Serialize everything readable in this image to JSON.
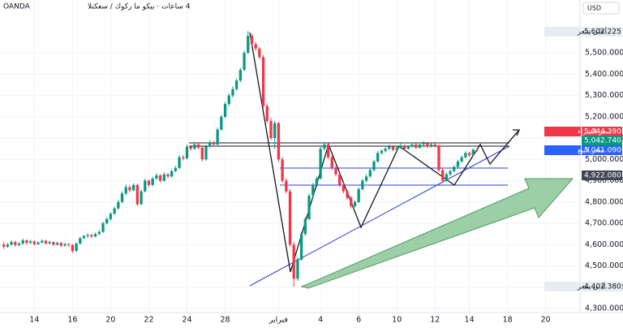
{
  "chart_data": {
    "type": "candlestick",
    "broker": "OANDA",
    "title": "4 ساعات · بيكو ما ركوك / سعكنلا",
    "currency": "USD",
    "up_color": "#089981",
    "down_color": "#f23645",
    "grid": true,
    "xlim": [
      -1,
      151
    ],
    "xticks": [
      {
        "value": 8,
        "label": "14"
      },
      {
        "value": 18,
        "label": "16"
      },
      {
        "value": 28,
        "label": "20"
      },
      {
        "value": 38,
        "label": "22"
      },
      {
        "value": 48,
        "label": "24"
      },
      {
        "value": 58,
        "label": "28"
      },
      {
        "value": 72,
        "label": "فبراير"
      },
      {
        "value": 83,
        "label": "4"
      },
      {
        "value": 93,
        "label": "6"
      },
      {
        "value": 103,
        "label": "10"
      },
      {
        "value": 113,
        "label": "12"
      },
      {
        "value": 122,
        "label": "14"
      },
      {
        "value": 132,
        "label": "18"
      },
      {
        "value": 142,
        "label": "20"
      }
    ],
    "ylim": [
      4281,
      5748
    ],
    "yticks": [
      {
        "value": 4300,
        "label": "4,300.000"
      },
      {
        "value": 4400,
        "label": "4,400.000"
      },
      {
        "value": 4500,
        "label": "4,500.000"
      },
      {
        "value": 4600,
        "label": "4,600.000"
      },
      {
        "value": 4700,
        "label": "4,700.000"
      },
      {
        "value": 4800,
        "label": "4,800.000"
      },
      {
        "value": 4900,
        "label": "4,900.000"
      },
      {
        "value": 5000,
        "label": "5,000.000"
      },
      {
        "value": 5100,
        "label": "5,100.000"
      },
      {
        "value": 5200,
        "label": "5,200.000"
      },
      {
        "value": 5300,
        "label": "5,300.000"
      },
      {
        "value": 5400,
        "label": "5,400.000"
      },
      {
        "value": 5500,
        "label": "5,500.000"
      }
    ],
    "price_labels": [
      {
        "name": "أعلى سعر",
        "value": 5602.225,
        "label": "5,602.225",
        "color": "#e8ebf2"
      },
      {
        "name": "سعر الشراء",
        "value": 5044.39,
        "label": "5,044.390",
        "color": "#f23645"
      },
      {
        "value": 5042.74,
        "label": "5,042.740",
        "color": "#089981"
      },
      {
        "name": "سعر البيع",
        "value": 5041.09,
        "label": "5,041.090",
        "color": "#2962ff"
      },
      {
        "value": 4922.08,
        "label": "4,922.080",
        "color": "#434651"
      },
      {
        "name": "أدنى سعر",
        "value": 4402.38,
        "label": "4,402.380",
        "color": "#e8ebf2"
      }
    ],
    "ohlc": [
      [
        4600,
        4612,
        4580,
        4590
      ],
      [
        4590,
        4608,
        4585,
        4600
      ],
      [
        4600,
        4620,
        4595,
        4612
      ],
      [
        4612,
        4618,
        4590,
        4598
      ],
      [
        4598,
        4612,
        4592,
        4605
      ],
      [
        4605,
        4628,
        4600,
        4620
      ],
      [
        4620,
        4625,
        4600,
        4608
      ],
      [
        4608,
        4622,
        4603,
        4615
      ],
      [
        4615,
        4620,
        4595,
        4602
      ],
      [
        4602,
        4616,
        4598,
        4610
      ],
      [
        4610,
        4625,
        4605,
        4618
      ],
      [
        4618,
        4622,
        4600,
        4606
      ],
      [
        4606,
        4618,
        4600,
        4612
      ],
      [
        4612,
        4615,
        4594,
        4600
      ],
      [
        4600,
        4614,
        4596,
        4608
      ],
      [
        4608,
        4612,
        4588,
        4595
      ],
      [
        4595,
        4608,
        4590,
        4602
      ],
      [
        4602,
        4606,
        4590,
        4598
      ],
      [
        4598,
        4602,
        4560,
        4570
      ],
      [
        4570,
        4610,
        4565,
        4605
      ],
      [
        4605,
        4636,
        4600,
        4630
      ],
      [
        4630,
        4646,
        4625,
        4640
      ],
      [
        4640,
        4652,
        4632,
        4645
      ],
      [
        4645,
        4650,
        4630,
        4638
      ],
      [
        4638,
        4656,
        4634,
        4650
      ],
      [
        4650,
        4668,
        4645,
        4660
      ],
      [
        4660,
        4708,
        4655,
        4700
      ],
      [
        4700,
        4728,
        4694,
        4720
      ],
      [
        4720,
        4752,
        4712,
        4745
      ],
      [
        4745,
        4778,
        4740,
        4770
      ],
      [
        4770,
        4810,
        4764,
        4800
      ],
      [
        4800,
        4850,
        4795,
        4840
      ],
      [
        4840,
        4882,
        4832,
        4870
      ],
      [
        4870,
        4878,
        4845,
        4855
      ],
      [
        4855,
        4888,
        4850,
        4880
      ],
      [
        4880,
        4886,
        4780,
        4790
      ],
      [
        4790,
        4858,
        4785,
        4850
      ],
      [
        4850,
        4910,
        4845,
        4900
      ],
      [
        4900,
        4906,
        4870,
        4880
      ],
      [
        4880,
        4918,
        4875,
        4910
      ],
      [
        4910,
        4935,
        4904,
        4925
      ],
      [
        4925,
        4930,
        4892,
        4900
      ],
      [
        4900,
        4940,
        4895,
        4930
      ],
      [
        4930,
        4936,
        4912,
        4920
      ],
      [
        4920,
        4952,
        4915,
        4945
      ],
      [
        4945,
        4970,
        4940,
        4960
      ],
      [
        4960,
        5020,
        4955,
        5010
      ],
      [
        5010,
        5022,
        4995,
        5005
      ],
      [
        5005,
        5070,
        5000,
        5060
      ],
      [
        5060,
        5066,
        5040,
        5050
      ],
      [
        5050,
        5082,
        5045,
        5070
      ],
      [
        5070,
        5076,
        5048,
        5055
      ],
      [
        5055,
        5060,
        4990,
        5000
      ],
      [
        5000,
        5068,
        4995,
        5060
      ],
      [
        5060,
        5090,
        5054,
        5080
      ],
      [
        5080,
        5086,
        5062,
        5070
      ],
      [
        5070,
        5150,
        5065,
        5140
      ],
      [
        5140,
        5210,
        5135,
        5200
      ],
      [
        5200,
        5270,
        5195,
        5260
      ],
      [
        5260,
        5310,
        5250,
        5300
      ],
      [
        5300,
        5342,
        5290,
        5330
      ],
      [
        5330,
        5380,
        5322,
        5370
      ],
      [
        5370,
        5430,
        5362,
        5420
      ],
      [
        5420,
        5510,
        5415,
        5500
      ],
      [
        5500,
        5602,
        5495,
        5580
      ],
      [
        5580,
        5590,
        5530,
        5540
      ],
      [
        5540,
        5552,
        5510,
        5520
      ],
      [
        5520,
        5528,
        5470,
        5480
      ],
      [
        5480,
        5490,
        5240,
        5250
      ],
      [
        5250,
        5262,
        5170,
        5180
      ],
      [
        5180,
        5195,
        5090,
        5100
      ],
      [
        5100,
        5180,
        5050,
        5170
      ],
      [
        5170,
        5176,
        4990,
        5000
      ],
      [
        5000,
        5010,
        4890,
        4900
      ],
      [
        4900,
        4912,
        4840,
        4850
      ],
      [
        4850,
        4860,
        4590,
        4600
      ],
      [
        4600,
        4612,
        4402.38,
        4440
      ],
      [
        4440,
        4540,
        4430,
        4530
      ],
      [
        4530,
        4660,
        4525,
        4650
      ],
      [
        4650,
        4730,
        4640,
        4720
      ],
      [
        4720,
        4840,
        4715,
        4830
      ],
      [
        4830,
        4890,
        4820,
        4880
      ],
      [
        4880,
        4920,
        4870,
        4910
      ],
      [
        4910,
        5060,
        4905,
        5050
      ],
      [
        5050,
        5082,
        5040,
        5070
      ],
      [
        5070,
        5076,
        5000,
        5010
      ],
      [
        5010,
        5018,
        4950,
        4960
      ],
      [
        4960,
        4970,
        4920,
        4930
      ],
      [
        4930,
        4938,
        4870,
        4880
      ],
      [
        4880,
        4890,
        4840,
        4850
      ],
      [
        4850,
        4858,
        4810,
        4820
      ],
      [
        4820,
        4828,
        4770,
        4780
      ],
      [
        4780,
        4808,
        4772,
        4800
      ],
      [
        4800,
        4868,
        4795,
        4860
      ],
      [
        4860,
        4908,
        4855,
        4900
      ],
      [
        4900,
        4930,
        4892,
        4920
      ],
      [
        4920,
        4958,
        4915,
        4950
      ],
      [
        4950,
        4998,
        4944,
        4990
      ],
      [
        4990,
        5040,
        4985,
        5030
      ],
      [
        5030,
        5048,
        5022,
        5040
      ],
      [
        5040,
        5058,
        5032,
        5050
      ],
      [
        5050,
        5070,
        5044,
        5060
      ],
      [
        5060,
        5066,
        5038,
        5045
      ],
      [
        5045,
        5062,
        5040,
        5055
      ],
      [
        5055,
        5074,
        5050,
        5065
      ],
      [
        5065,
        5070,
        5044,
        5050
      ],
      [
        5050,
        5066,
        5045,
        5060
      ],
      [
        5060,
        5078,
        5054,
        5070
      ],
      [
        5070,
        5075,
        5048,
        5055
      ],
      [
        5055,
        5078,
        5050,
        5070
      ],
      [
        5070,
        5086,
        5064,
        5075
      ],
      [
        5075,
        5080,
        5054,
        5060
      ],
      [
        5060,
        5076,
        5055,
        5070
      ],
      [
        5070,
        5075,
        5058,
        5065
      ],
      [
        5065,
        5070,
        4940,
        4950
      ],
      [
        4950,
        4958,
        4895,
        4900
      ],
      [
        4900,
        4938,
        4895,
        4930
      ],
      [
        4930,
        4952,
        4922,
        4945
      ],
      [
        4945,
        4972,
        4940,
        4965
      ],
      [
        4965,
        4998,
        4960,
        4990
      ],
      [
        4990,
        5018,
        4985,
        5010
      ],
      [
        5010,
        5038,
        5004,
        5030
      ],
      [
        5030,
        5036,
        5012,
        5020
      ],
      [
        5020,
        5052,
        5015,
        5045
      ],
      [
        5045,
        5052,
        5036,
        5041.09
      ]
    ]
  }
}
